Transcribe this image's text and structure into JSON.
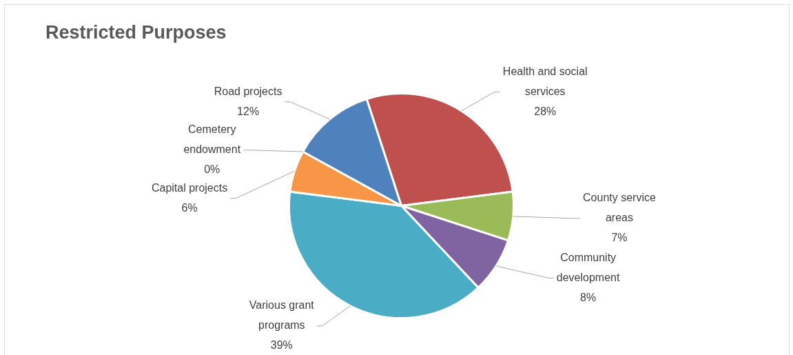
{
  "chart_data": {
    "type": "pie",
    "title": "Restricted Purposes",
    "categories": [
      "Health and social services",
      "County service areas",
      "Community development",
      "Various grant programs",
      "Capital projects",
      "Cemetery endowment",
      "Road projects"
    ],
    "values": [
      28,
      7,
      8,
      39,
      6,
      0,
      12
    ],
    "value_labels": [
      "28%",
      "7%",
      "8%",
      "39%",
      "6%",
      "0%",
      "12%"
    ],
    "colors": [
      "#c0504d",
      "#9bbb59",
      "#8064a2",
      "#4bacc6",
      "#f79646",
      "#2c4d75",
      "#4f81bd"
    ],
    "legend": false
  }
}
